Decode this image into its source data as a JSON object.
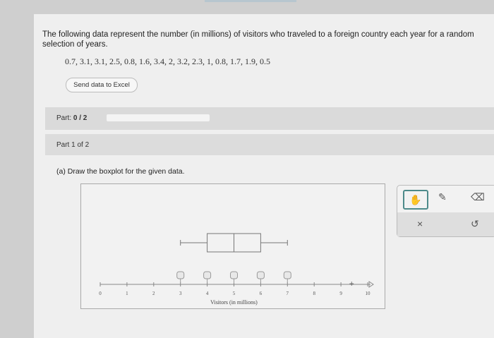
{
  "question": "The following data represent the number (in millions) of visitors who traveled to a foreign country each year for a random selection of years.",
  "data_values": "0.7, 3.1, 3.1, 2.5, 0.8, 1.6, 3.4, 2, 3.2, 2.3, 1, 0.8, 1.7, 1.9, 0.5",
  "send_button": "Send data to Excel",
  "part_progress": {
    "label": "Part:",
    "value": "0 / 2",
    "fraction": 0
  },
  "part_header": "Part 1 of 2",
  "part_a": "(a) Draw the boxplot for the given data.",
  "chart_data": {
    "type": "boxplot",
    "xlabel": "Visitors (in millions)",
    "xlim": [
      0,
      10
    ],
    "ticks": [
      "0",
      "1",
      "2",
      "3",
      "4",
      "5",
      "6",
      "7",
      "8",
      "9",
      "10"
    ],
    "boxplot": {
      "min": 3,
      "q1": 4,
      "median": 5,
      "q3": 6,
      "max": 7
    }
  },
  "tools": {
    "hand": "hand-icon",
    "pencil": "pencil-icon",
    "eraser": "eraser-icon",
    "clear": "×",
    "undo": "↺"
  }
}
